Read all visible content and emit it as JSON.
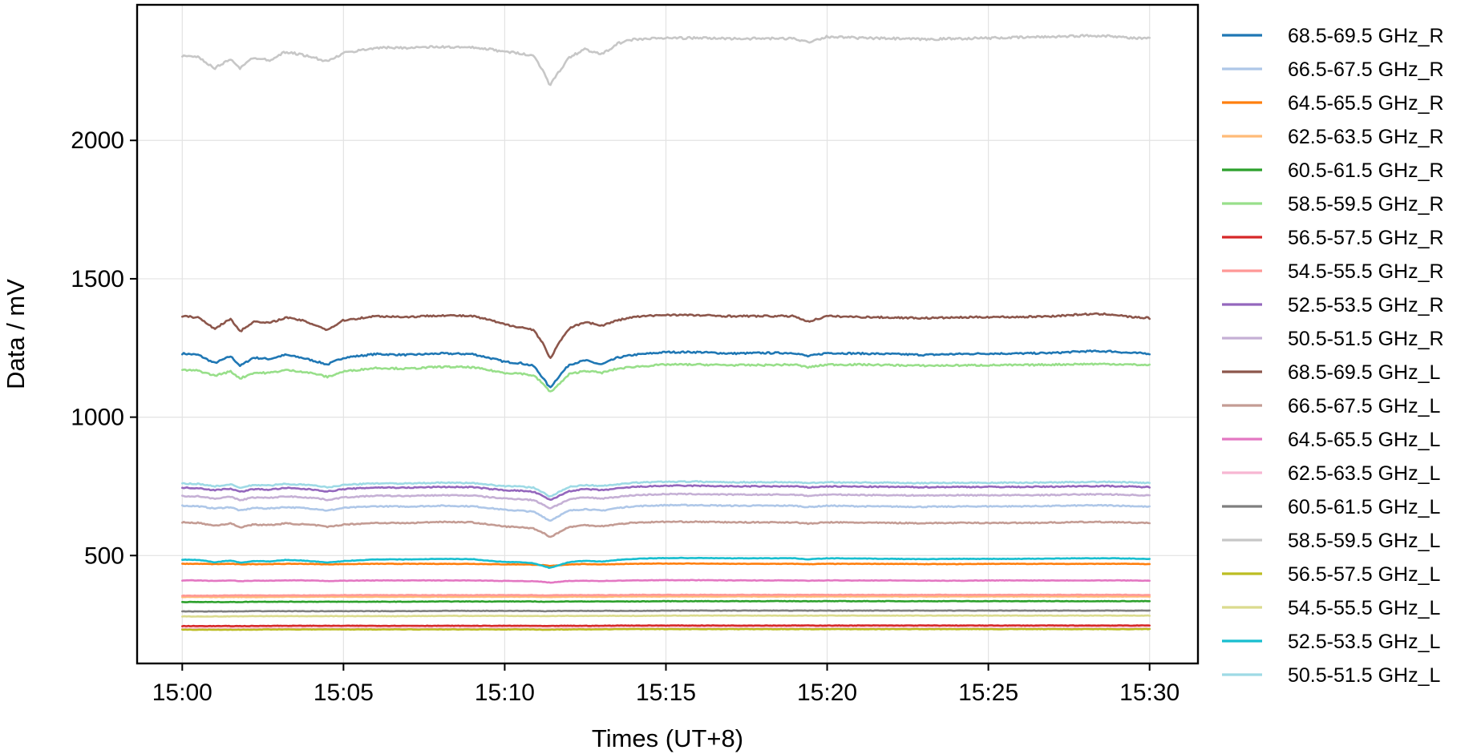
{
  "chart_data": {
    "type": "line",
    "title": "",
    "xlabel": "Times (UT+8)",
    "ylabel": "Data / mV",
    "x_unit": "minutes after 15:00",
    "xlim": [
      -1.4,
      31.5
    ],
    "ylim": [
      110,
      2490
    ],
    "x_ticks": [
      {
        "value": 0,
        "label": "15:00"
      },
      {
        "value": 5,
        "label": "15:05"
      },
      {
        "value": 10,
        "label": "15:10"
      },
      {
        "value": 15,
        "label": "15:15"
      },
      {
        "value": 20,
        "label": "15:20"
      },
      {
        "value": 25,
        "label": "15:25"
      },
      {
        "value": 30,
        "label": "15:30"
      }
    ],
    "y_ticks": [
      {
        "value": 500,
        "label": "500"
      },
      {
        "value": 1000,
        "label": "1000"
      },
      {
        "value": 1500,
        "label": "1500"
      },
      {
        "value": 2000,
        "label": "2000"
      }
    ],
    "grid": true,
    "legend_position": "outside-right",
    "x": [
      0,
      0.5,
      1,
      1.5,
      1.8,
      2.2,
      2.7,
      3.2,
      3.7,
      4.2,
      4.5,
      5,
      6,
      7,
      8,
      9,
      9.5,
      10,
      10.5,
      10.9,
      11.2,
      11.4,
      11.7,
      12,
      12.5,
      13,
      13.5,
      14,
      15,
      16,
      17,
      18,
      19,
      19.4,
      20,
      21,
      22,
      23,
      24,
      25,
      26,
      27,
      28,
      28.8,
      29.4,
      30
    ],
    "series": [
      {
        "name": "68.5-69.5 GHz_R",
        "color": "#1f77b4",
        "values": [
          1230,
          1225,
          1195,
          1220,
          1185,
          1215,
          1210,
          1225,
          1215,
          1200,
          1190,
          1215,
          1228,
          1225,
          1230,
          1228,
          1215,
          1200,
          1195,
          1185,
          1140,
          1105,
          1150,
          1190,
          1205,
          1190,
          1215,
          1225,
          1235,
          1235,
          1230,
          1232,
          1232,
          1220,
          1232,
          1230,
          1228,
          1225,
          1228,
          1230,
          1230,
          1232,
          1238,
          1238,
          1232,
          1230
        ]
      },
      {
        "name": "66.5-67.5 GHz_R",
        "color": "#aec7e8",
        "values": [
          680,
          678,
          670,
          675,
          662,
          672,
          670,
          675,
          672,
          668,
          662,
          672,
          678,
          677,
          680,
          678,
          672,
          665,
          662,
          658,
          640,
          625,
          645,
          662,
          668,
          662,
          672,
          678,
          682,
          682,
          680,
          680,
          680,
          675,
          680,
          678,
          677,
          676,
          677,
          678,
          678,
          679,
          681,
          681,
          679,
          676
        ]
      },
      {
        "name": "64.5-65.5 GHz_R",
        "color": "#ff7f0e",
        "values": [
          470,
          470,
          469,
          470,
          468,
          469,
          469,
          470,
          470,
          469,
          468,
          469,
          470,
          470,
          470,
          470,
          469,
          468,
          468,
          467,
          465,
          462,
          465,
          468,
          469,
          468,
          469,
          470,
          471,
          471,
          470,
          470,
          470,
          469,
          470,
          470,
          470,
          469,
          469,
          470,
          470,
          470,
          470,
          470,
          470,
          469
        ]
      },
      {
        "name": "62.5-63.5 GHz_R",
        "color": "#ffbb78",
        "values": [
          350,
          350,
          350,
          350,
          350,
          350,
          350,
          351,
          351,
          351,
          351,
          351,
          351,
          351,
          351,
          351,
          351,
          351,
          351,
          351,
          350,
          350,
          351,
          351,
          351,
          351,
          352,
          352,
          352,
          352,
          352,
          352,
          352,
          352,
          352,
          352,
          352,
          352,
          352,
          352,
          352,
          352,
          352,
          352,
          352,
          352
        ]
      },
      {
        "name": "60.5-61.5 GHz_R",
        "color": "#2ca02c",
        "values": [
          332,
          332,
          332,
          332,
          332,
          333,
          333,
          333,
          333,
          333,
          333,
          333,
          333,
          333,
          334,
          334,
          334,
          334,
          334,
          334,
          333,
          333,
          334,
          334,
          334,
          334,
          334,
          334,
          335,
          335,
          335,
          335,
          335,
          335,
          335,
          335,
          335,
          335,
          335,
          335,
          335,
          335,
          335,
          335,
          335,
          335
        ]
      },
      {
        "name": "58.5-59.5 GHz_R",
        "color": "#98df8a",
        "values": [
          1170,
          1168,
          1150,
          1165,
          1140,
          1160,
          1160,
          1170,
          1165,
          1155,
          1145,
          1165,
          1178,
          1175,
          1182,
          1180,
          1170,
          1160,
          1158,
          1150,
          1120,
          1090,
          1120,
          1155,
          1168,
          1160,
          1175,
          1182,
          1190,
          1190,
          1188,
          1188,
          1190,
          1180,
          1190,
          1190,
          1188,
          1186,
          1187,
          1188,
          1188,
          1190,
          1192,
          1192,
          1190,
          1188
        ]
      },
      {
        "name": "56.5-57.5 GHz_R",
        "color": "#d62728",
        "values": [
          245,
          245,
          245,
          245,
          245,
          245,
          246,
          246,
          246,
          246,
          246,
          246,
          246,
          246,
          246,
          246,
          246,
          246,
          246,
          246,
          245,
          245,
          246,
          246,
          246,
          246,
          247,
          247,
          247,
          247,
          247,
          247,
          247,
          247,
          247,
          247,
          247,
          247,
          247,
          247,
          247,
          247,
          247,
          247,
          247,
          247
        ]
      },
      {
        "name": "54.5-55.5 GHz_R",
        "color": "#ff9896",
        "values": [
          355,
          355,
          355,
          356,
          356,
          356,
          356,
          356,
          356,
          356,
          356,
          357,
          357,
          357,
          357,
          357,
          357,
          357,
          357,
          357,
          356,
          356,
          357,
          357,
          357,
          357,
          357,
          358,
          358,
          358,
          358,
          358,
          358,
          358,
          358,
          358,
          358,
          358,
          358,
          358,
          358,
          358,
          358,
          358,
          358,
          357
        ]
      },
      {
        "name": "52.5-53.5 GHz_R",
        "color": "#9467bd",
        "values": [
          745,
          744,
          736,
          742,
          730,
          740,
          738,
          744,
          741,
          737,
          731,
          740,
          746,
          745,
          748,
          747,
          741,
          736,
          734,
          730,
          714,
          700,
          716,
          733,
          740,
          736,
          742,
          748,
          752,
          752,
          750,
          750,
          750,
          746,
          750,
          749,
          748,
          747,
          748,
          748,
          748,
          749,
          751,
          751,
          749,
          747
        ]
      },
      {
        "name": "50.5-51.5 GHz_R",
        "color": "#c5b0d5",
        "values": [
          715,
          714,
          706,
          712,
          700,
          710,
          708,
          714,
          711,
          707,
          701,
          710,
          716,
          715,
          718,
          717,
          711,
          706,
          704,
          700,
          684,
          670,
          686,
          703,
          710,
          706,
          712,
          718,
          722,
          722,
          720,
          720,
          720,
          716,
          720,
          719,
          718,
          717,
          718,
          718,
          718,
          719,
          721,
          721,
          719,
          717
        ]
      },
      {
        "name": "68.5-69.5 GHz_L",
        "color": "#8c564b",
        "values": [
          1365,
          1360,
          1320,
          1355,
          1310,
          1345,
          1340,
          1360,
          1350,
          1330,
          1315,
          1350,
          1365,
          1362,
          1368,
          1365,
          1352,
          1335,
          1325,
          1315,
          1265,
          1210,
          1270,
          1320,
          1345,
          1330,
          1350,
          1362,
          1370,
          1368,
          1365,
          1365,
          1365,
          1345,
          1365,
          1362,
          1360,
          1358,
          1360,
          1362,
          1362,
          1365,
          1372,
          1372,
          1362,
          1358
        ]
      },
      {
        "name": "66.5-67.5 GHz_L",
        "color": "#c49c94",
        "values": [
          620,
          618,
          608,
          616,
          602,
          612,
          610,
          616,
          613,
          609,
          603,
          612,
          618,
          617,
          622,
          620,
          612,
          605,
          602,
          598,
          582,
          566,
          585,
          603,
          610,
          606,
          613,
          619,
          622,
          622,
          620,
          620,
          620,
          615,
          620,
          619,
          618,
          617,
          618,
          618,
          618,
          619,
          621,
          621,
          619,
          617
        ]
      },
      {
        "name": "64.5-65.5 GHz_L",
        "color": "#e377c2",
        "values": [
          410,
          410,
          408,
          410,
          407,
          409,
          409,
          410,
          410,
          409,
          408,
          409,
          410,
          410,
          410,
          410,
          409,
          408,
          408,
          407,
          405,
          402,
          405,
          408,
          409,
          408,
          409,
          410,
          411,
          411,
          410,
          410,
          410,
          409,
          410,
          410,
          410,
          409,
          409,
          410,
          410,
          410,
          410,
          410,
          410,
          409
        ]
      },
      {
        "name": "62.5-63.5 GHz_L",
        "color": "#f7b6d2",
        "values": [
          235,
          235,
          235,
          235,
          235,
          235,
          236,
          236,
          236,
          236,
          236,
          236,
          236,
          236,
          236,
          236,
          236,
          236,
          236,
          236,
          235,
          235,
          236,
          236,
          236,
          236,
          237,
          237,
          237,
          237,
          237,
          237,
          237,
          237,
          237,
          237,
          237,
          237,
          237,
          237,
          237,
          237,
          237,
          237,
          237,
          237
        ]
      },
      {
        "name": "60.5-61.5 GHz_L",
        "color": "#7f7f7f",
        "values": [
          298,
          298,
          298,
          298,
          298,
          299,
          299,
          299,
          299,
          299,
          299,
          299,
          299,
          299,
          300,
          300,
          300,
          300,
          300,
          300,
          299,
          299,
          300,
          300,
          300,
          300,
          300,
          300,
          301,
          301,
          301,
          301,
          301,
          301,
          301,
          301,
          301,
          301,
          301,
          301,
          301,
          301,
          301,
          301,
          301,
          301
        ]
      },
      {
        "name": "58.5-59.5 GHz_L",
        "color": "#c7c7c7",
        "values": [
          2305,
          2300,
          2260,
          2295,
          2260,
          2300,
          2290,
          2320,
          2310,
          2295,
          2285,
          2315,
          2335,
          2335,
          2338,
          2335,
          2330,
          2320,
          2315,
          2305,
          2250,
          2200,
          2250,
          2300,
          2330,
          2310,
          2350,
          2365,
          2370,
          2370,
          2368,
          2368,
          2368,
          2355,
          2375,
          2370,
          2368,
          2365,
          2368,
          2370,
          2372,
          2375,
          2378,
          2378,
          2370,
          2368
        ]
      },
      {
        "name": "56.5-57.5 GHz_L",
        "color": "#bcbd22",
        "values": [
          232,
          232,
          232,
          232,
          232,
          232,
          233,
          233,
          233,
          233,
          233,
          233,
          233,
          233,
          233,
          233,
          233,
          233,
          233,
          233,
          232,
          232,
          233,
          233,
          233,
          233,
          234,
          234,
          234,
          234,
          234,
          234,
          234,
          234,
          234,
          234,
          234,
          234,
          234,
          234,
          234,
          234,
          234,
          234,
          234,
          234
        ]
      },
      {
        "name": "54.5-55.5 GHz_L",
        "color": "#dbdb8d",
        "values": [
          280,
          280,
          280,
          280,
          280,
          281,
          281,
          281,
          281,
          281,
          281,
          281,
          281,
          281,
          282,
          282,
          282,
          282,
          282,
          282,
          281,
          281,
          282,
          282,
          282,
          282,
          282,
          282,
          283,
          283,
          283,
          283,
          283,
          283,
          283,
          283,
          283,
          283,
          283,
          283,
          283,
          283,
          283,
          283,
          283,
          283
        ]
      },
      {
        "name": "52.5-53.5 GHz_L",
        "color": "#17becf",
        "values": [
          485,
          484,
          476,
          482,
          474,
          480,
          479,
          484,
          482,
          478,
          474,
          480,
          486,
          486,
          488,
          487,
          481,
          477,
          476,
          472,
          462,
          455,
          466,
          476,
          481,
          478,
          484,
          488,
          491,
          491,
          490,
          490,
          490,
          486,
          490,
          489,
          488,
          487,
          488,
          488,
          488,
          489,
          490,
          490,
          489,
          487
        ]
      },
      {
        "name": "50.5-51.5 GHz_L",
        "color": "#9edae5",
        "values": [
          760,
          759,
          750,
          757,
          744,
          755,
          753,
          759,
          756,
          752,
          746,
          755,
          761,
          760,
          763,
          762,
          756,
          751,
          749,
          745,
          728,
          712,
          730,
          748,
          755,
          751,
          757,
          763,
          767,
          767,
          765,
          765,
          765,
          761,
          765,
          764,
          763,
          762,
          763,
          763,
          763,
          764,
          766,
          766,
          764,
          762
        ]
      }
    ]
  }
}
